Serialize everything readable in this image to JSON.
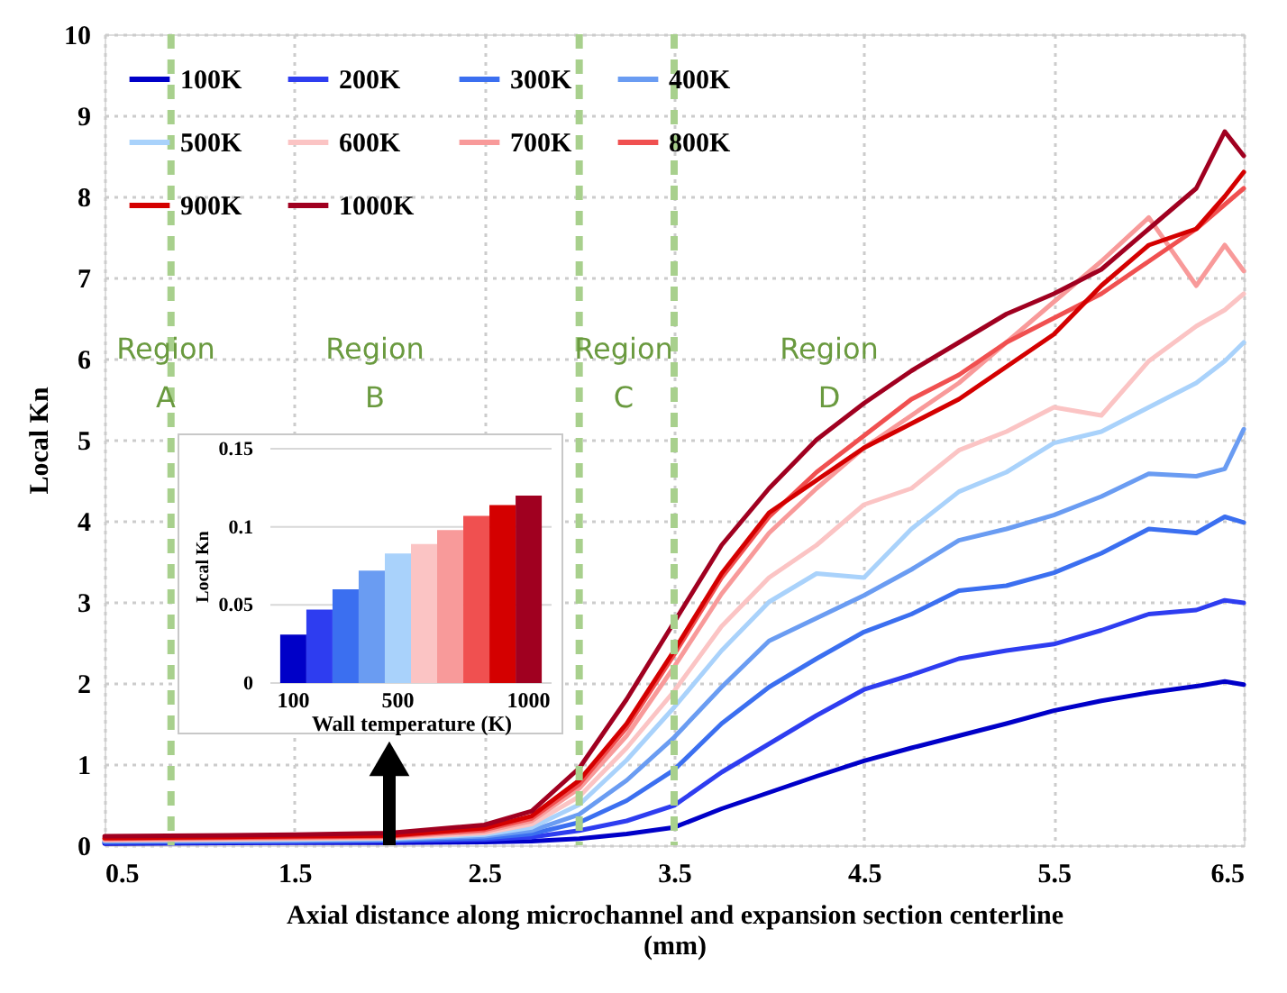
{
  "chart_data": [
    {
      "type": "line",
      "xlabel": "Axial distance along microchannel and expansion section centerline (mm)",
      "ylabel": "Local Kn",
      "x": [
        0.5,
        1.5,
        2.0,
        2.5,
        2.75,
        3.0,
        3.25,
        3.5,
        3.75,
        4.0,
        4.25,
        4.5,
        4.75,
        5.0,
        5.25,
        5.5,
        5.75,
        6.0,
        6.25,
        6.4,
        6.5
      ],
      "series": [
        {
          "name": "100K",
          "color": "#0000c8",
          "values": [
            0.02,
            0.03,
            0.03,
            0.04,
            0.05,
            0.08,
            0.14,
            0.22,
            0.45,
            0.65,
            0.85,
            1.04,
            1.2,
            1.35,
            1.5,
            1.66,
            1.78,
            1.88,
            1.96,
            2.02,
            1.98
          ]
        },
        {
          "name": "200K",
          "color": "#2e3df0",
          "values": [
            0.03,
            0.04,
            0.05,
            0.07,
            0.1,
            0.18,
            0.3,
            0.49,
            0.9,
            1.25,
            1.6,
            1.92,
            2.1,
            2.3,
            2.4,
            2.48,
            2.65,
            2.85,
            2.9,
            3.02,
            2.99
          ]
        },
        {
          "name": "300K",
          "color": "#3b6ff0",
          "values": [
            0.04,
            0.05,
            0.06,
            0.09,
            0.14,
            0.28,
            0.55,
            0.93,
            1.5,
            1.95,
            2.3,
            2.63,
            2.85,
            3.14,
            3.2,
            3.36,
            3.6,
            3.9,
            3.85,
            4.05,
            3.98
          ]
        },
        {
          "name": "400K",
          "color": "#6a9cf2",
          "values": [
            0.05,
            0.06,
            0.07,
            0.11,
            0.18,
            0.38,
            0.8,
            1.33,
            1.95,
            2.52,
            2.8,
            3.08,
            3.4,
            3.76,
            3.9,
            4.07,
            4.3,
            4.58,
            4.55,
            4.64,
            5.13
          ]
        },
        {
          "name": "500K",
          "color": "#a9d2fb",
          "values": [
            0.06,
            0.07,
            0.08,
            0.13,
            0.22,
            0.5,
            1.05,
            1.7,
            2.4,
            3.0,
            3.35,
            3.3,
            3.9,
            4.36,
            4.6,
            4.96,
            5.1,
            5.4,
            5.7,
            5.97,
            6.2
          ]
        },
        {
          "name": "600K",
          "color": "#fbc4c4",
          "values": [
            0.06,
            0.08,
            0.09,
            0.15,
            0.26,
            0.6,
            1.2,
            1.9,
            2.7,
            3.3,
            3.7,
            4.2,
            4.4,
            4.87,
            5.1,
            5.4,
            5.3,
            5.97,
            6.4,
            6.6,
            6.8
          ]
        },
        {
          "name": "700K",
          "color": "#f89a9a",
          "values": [
            0.07,
            0.09,
            0.1,
            0.17,
            0.3,
            0.7,
            1.35,
            2.2,
            3.1,
            3.85,
            4.4,
            4.9,
            5.3,
            5.7,
            6.2,
            6.7,
            7.2,
            7.74,
            6.9,
            7.4,
            7.08
          ]
        },
        {
          "name": "800K",
          "color": "#f05050",
          "values": [
            0.08,
            0.1,
            0.11,
            0.19,
            0.33,
            0.75,
            1.45,
            2.35,
            3.3,
            4.05,
            4.6,
            5.05,
            5.5,
            5.8,
            6.2,
            6.5,
            6.8,
            7.2,
            7.6,
            7.9,
            8.1
          ]
        },
        {
          "name": "900K",
          "color": "#d40000",
          "values": [
            0.09,
            0.11,
            0.12,
            0.21,
            0.36,
            0.8,
            1.5,
            2.4,
            3.35,
            4.1,
            4.5,
            4.9,
            5.2,
            5.5,
            5.9,
            6.3,
            6.9,
            7.4,
            7.6,
            8.0,
            8.3
          ]
        },
        {
          "name": "1000K",
          "color": "#a00020",
          "values": [
            0.11,
            0.13,
            0.15,
            0.25,
            0.42,
            0.95,
            1.8,
            2.75,
            3.7,
            4.4,
            5.0,
            5.45,
            5.85,
            6.2,
            6.55,
            6.8,
            7.1,
            7.6,
            8.1,
            8.8,
            8.5
          ]
        }
      ],
      "xlim": [
        0.5,
        6.5
      ],
      "xticks": [
        0.5,
        1.5,
        2.5,
        3.5,
        4.5,
        5.5,
        6.5
      ],
      "ylim": [
        0,
        10
      ],
      "yticks": [
        0,
        1,
        2,
        3,
        4,
        5,
        6,
        7,
        8,
        9,
        10
      ],
      "ref_lines": [
        {
          "axis": "x",
          "value": 0.85,
          "color": "#a8d08d",
          "line_style": "dashed"
        },
        {
          "axis": "x",
          "value": 3.0,
          "color": "#a8d08d",
          "line_style": "dashed"
        },
        {
          "axis": "x",
          "value": 3.5,
          "color": "#a8d08d",
          "line_style": "dashed"
        }
      ],
      "annotations": [
        "Region A",
        "Region B",
        "Region C",
        "Region D"
      ],
      "grid": true,
      "legend": "top left",
      "line_style": "solid",
      "marker": "none"
    },
    {
      "type": "bar",
      "xlabel": "Wall temperature (K)",
      "ylabel": "Local Kn",
      "categories": [
        "100",
        null,
        null,
        null,
        "500",
        null,
        null,
        null,
        null,
        "1000"
      ],
      "values": [
        0.031,
        0.047,
        0.06,
        0.072,
        0.083,
        0.089,
        0.098,
        0.107,
        0.114,
        0.12
      ],
      "colors": [
        "#0000c8",
        "#2e3df0",
        "#3b6ff0",
        "#6a9cf2",
        "#a9d2fb",
        "#fbc4c4",
        "#f89a9a",
        "#f05050",
        "#d40000",
        "#a00020"
      ],
      "ylim": [
        0,
        0.15
      ],
      "yticks": [
        0,
        0.05,
        0.1,
        0.15
      ],
      "grid": "y"
    }
  ]
}
